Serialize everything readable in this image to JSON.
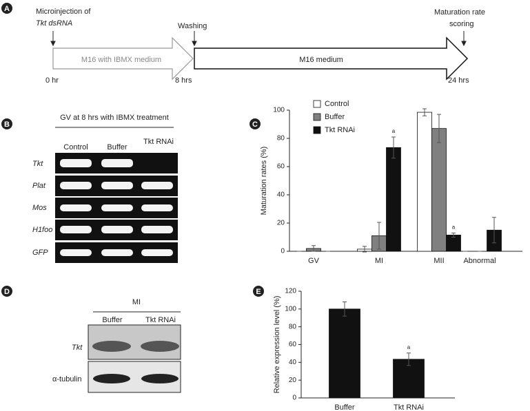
{
  "figure": {
    "panel_a": {
      "letter": "A",
      "inject_line1": "Microinjection of",
      "inject_line2": "Tkt dsRNA",
      "washing": "Washing",
      "scoring_line1": "Maturation rate",
      "scoring_line2": "scoring",
      "stage1": "M16 with IBMX medium",
      "stage2": "M16 medium",
      "time0": "0 hr",
      "time1": "8 hrs",
      "time2": "24 hrs"
    },
    "panel_b": {
      "letter": "B",
      "title": "GV at 8 hrs with IBMX treatment",
      "lanes": [
        "Control",
        "Buffer",
        "Tkt RNAi"
      ],
      "rows": [
        "Tkt",
        "Plat",
        "Mos",
        "H1foo",
        "GFP"
      ]
    },
    "panel_d": {
      "letter": "D",
      "title": "MI",
      "lanes": [
        "Buffer",
        "Tkt RNAi"
      ],
      "rows": [
        "Tkt",
        "α-tubulin"
      ]
    }
  },
  "chart_data": [
    {
      "type": "bar",
      "panel": "C",
      "ylabel": "Maturation rates (%)",
      "categories": [
        "GV",
        "MI",
        "MII",
        "Abnormal"
      ],
      "series": [
        {
          "name": "Control",
          "color": "#ffffff",
          "values": [
            0,
            1.5,
            98.5,
            0
          ],
          "errors": [
            0,
            2,
            2.5,
            0
          ]
        },
        {
          "name": "Buffer",
          "color": "#808080",
          "values": [
            2,
            11,
            87,
            0
          ],
          "errors": [
            2,
            9.5,
            10,
            0
          ]
        },
        {
          "name": "Tkt RNAi",
          "color": "#111111",
          "values": [
            0,
            73.5,
            11.5,
            15
          ],
          "errors": [
            0,
            7.5,
            1.5,
            9
          ],
          "annotations": [
            null,
            "a",
            "a",
            null
          ]
        }
      ],
      "ylim": [
        0,
        100
      ],
      "yticks": [
        0,
        20,
        40,
        60,
        80,
        100
      ],
      "legend": "top-left"
    },
    {
      "type": "bar",
      "panel": "E",
      "ylabel": "Relative expression level (%)",
      "categories": [
        "Buffer",
        "Tkt RNAi"
      ],
      "series": [
        {
          "color": "#111111",
          "values": [
            100,
            43.5
          ],
          "errors": [
            8,
            7
          ],
          "annotations": [
            null,
            "a"
          ]
        }
      ],
      "ylim": [
        0,
        120
      ],
      "yticks": [
        0,
        20,
        40,
        60,
        80,
        100,
        120
      ]
    }
  ]
}
